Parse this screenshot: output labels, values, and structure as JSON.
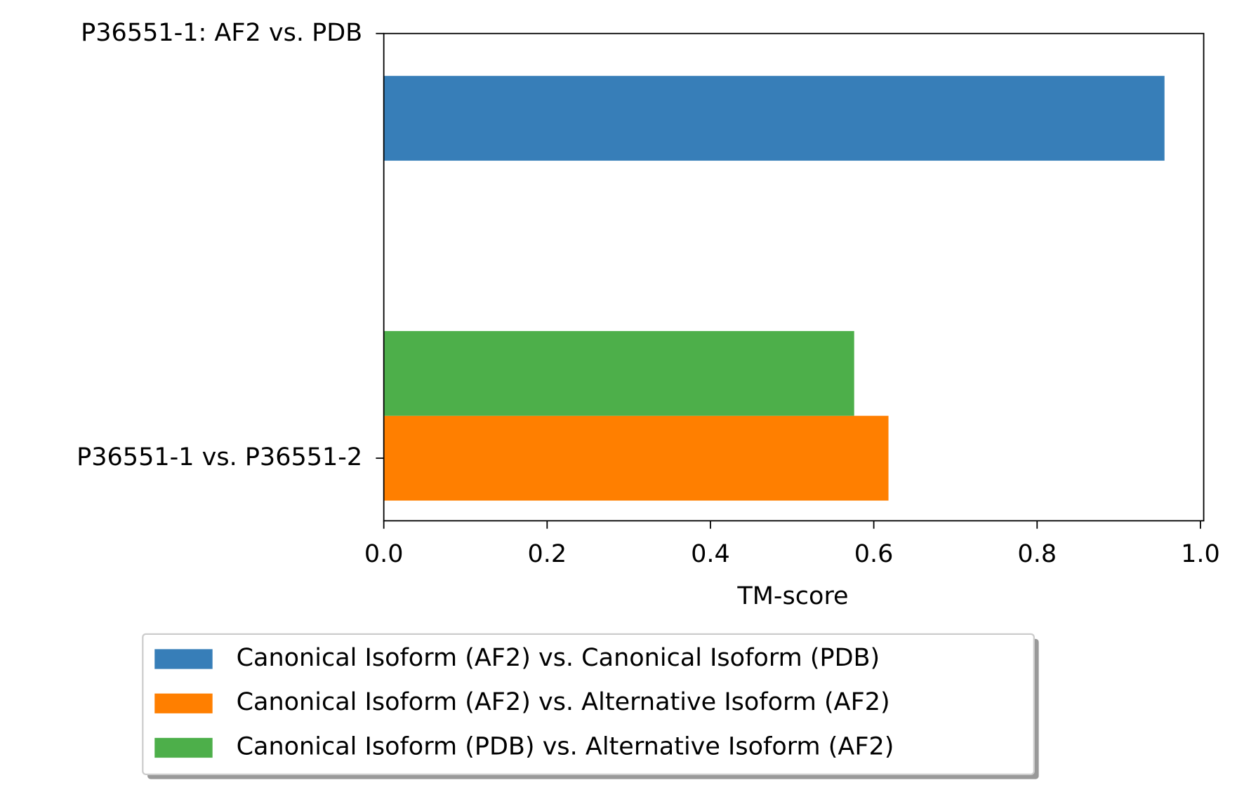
{
  "chart_data": {
    "type": "barh",
    "categories": [
      "P36551-1: AF2 vs. PDB",
      "P36551-1 vs. P36551-2"
    ],
    "series": [
      {
        "name": "Canonical Isoform (AF2) vs. Canonical Isoform (PDB)",
        "color": "#377eb8",
        "values": [
          0.956,
          null
        ]
      },
      {
        "name": "Canonical Isoform (AF2) vs. Alternative Isoform (AF2)",
        "color": "#ff7f00",
        "values": [
          null,
          0.618
        ]
      },
      {
        "name": "Canonical Isoform (PDB) vs. Alternative Isoform (AF2)",
        "color": "#4daf4a",
        "values": [
          null,
          0.576
        ]
      }
    ],
    "xlabel": "TM-score",
    "xlim": [
      0,
      1.004
    ],
    "xticks": [
      {
        "value": 0,
        "label": "0.0"
      },
      {
        "value": 0.2,
        "label": "0.2"
      },
      {
        "value": 0.4,
        "label": "0.4"
      },
      {
        "value": 0.6,
        "label": "0.6"
      },
      {
        "value": 0.8,
        "label": "0.8"
      },
      {
        "value": 1,
        "label": "1.0"
      }
    ],
    "legend": "bottom"
  }
}
